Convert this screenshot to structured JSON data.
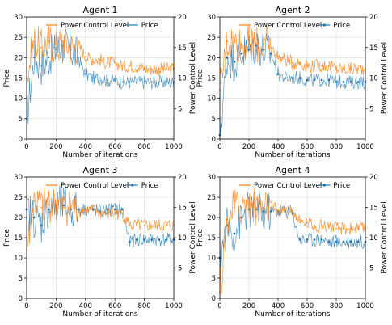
{
  "chart_data": [
    {
      "type": "line",
      "title": "Agent 1",
      "xlabel": "Number of iterations",
      "ylabel": "Price",
      "ylabel_right": "Power Control Level",
      "xlim": [
        0,
        1000
      ],
      "ylim": [
        0,
        30
      ],
      "ylim_right": [
        0,
        20
      ],
      "xticks": [
        0,
        200,
        400,
        600,
        800,
        1000
      ],
      "yticks": [
        0,
        5,
        10,
        15,
        20,
        25,
        30
      ],
      "yticks_right": [
        5,
        10,
        15,
        20
      ],
      "grid": true,
      "legend_position": "top",
      "colors": {
        "power": "#ff7f0e",
        "price": "#1f77b4"
      },
      "series": [
        {
          "name": "Power Control Level",
          "axis": "right",
          "marker": false,
          "x": [
            0,
            50,
            100,
            150,
            200,
            250,
            300,
            350,
            400,
            450,
            500,
            550,
            600,
            650,
            700,
            750,
            800,
            850,
            900,
            950,
            1000
          ],
          "values": [
            10,
            16,
            15,
            16,
            15,
            16,
            15,
            15.5,
            13.5,
            13,
            13,
            12.5,
            12.5,
            12,
            12,
            12,
            11.5,
            11.5,
            11.5,
            11.5,
            11.5
          ]
        },
        {
          "name": "Price",
          "axis": "left",
          "marker": false,
          "x": [
            0,
            50,
            100,
            150,
            200,
            250,
            300,
            350,
            400,
            450,
            500,
            550,
            600,
            650,
            700,
            750,
            800,
            850,
            900,
            950,
            1000
          ],
          "values": [
            5,
            20,
            18,
            20,
            22,
            23,
            22,
            20,
            16,
            15,
            15,
            14.5,
            14.5,
            14,
            14,
            14,
            14,
            14,
            14,
            14,
            14
          ]
        }
      ]
    },
    {
      "type": "line",
      "title": "Agent 2",
      "xlabel": "Number of iterations",
      "ylabel": "Price",
      "ylabel_right": "Power Control Level",
      "xlim": [
        0,
        1000
      ],
      "ylim": [
        0,
        30
      ],
      "ylim_right": [
        0,
        20
      ],
      "xticks": [
        0,
        200,
        400,
        600,
        800,
        1000
      ],
      "yticks": [
        0,
        5,
        10,
        15,
        20,
        25,
        30
      ],
      "yticks_right": [
        5,
        10,
        15,
        20
      ],
      "grid": true,
      "legend_position": "top",
      "colors": {
        "power": "#ff7f0e",
        "price": "#1f77b4"
      },
      "series": [
        {
          "name": "Power Control Level",
          "axis": "right",
          "marker": false,
          "x": [
            0,
            50,
            100,
            150,
            200,
            250,
            300,
            350,
            400,
            450,
            500,
            550,
            600,
            650,
            700,
            750,
            800,
            850,
            900,
            950,
            1000
          ],
          "values": [
            8,
            16,
            16,
            15.5,
            15.5,
            15.5,
            15.5,
            15,
            13.5,
            13,
            12.5,
            12.5,
            12,
            12,
            12,
            12,
            11.5,
            11.5,
            11.5,
            11.5,
            11.5
          ]
        },
        {
          "name": "Price",
          "axis": "left",
          "marker": true,
          "x": [
            0,
            50,
            100,
            150,
            200,
            250,
            300,
            350,
            400,
            450,
            500,
            550,
            600,
            650,
            700,
            750,
            800,
            850,
            900,
            950,
            1000
          ],
          "values": [
            1,
            20,
            19,
            21,
            22,
            23,
            22,
            21,
            16,
            15,
            15,
            15,
            14.5,
            14.5,
            14.5,
            14.5,
            14,
            14,
            14,
            14,
            14
          ]
        }
      ]
    },
    {
      "type": "line",
      "title": "Agent 3",
      "xlabel": "Number of iterations",
      "ylabel": "Price",
      "ylabel_right": "Power Control Level",
      "xlim": [
        0,
        1000
      ],
      "ylim": [
        0,
        30
      ],
      "ylim_right": [
        0,
        20
      ],
      "xticks": [
        0,
        200,
        400,
        600,
        800,
        1000
      ],
      "yticks": [
        0,
        5,
        10,
        15,
        20,
        25,
        30
      ],
      "yticks_right": [
        5,
        10,
        15,
        20
      ],
      "grid": true,
      "legend_position": "top",
      "colors": {
        "power": "#ff7f0e",
        "price": "#1f77b4"
      },
      "series": [
        {
          "name": "Power Control Level",
          "axis": "right",
          "marker": false,
          "x": [
            0,
            50,
            100,
            150,
            200,
            250,
            300,
            350,
            400,
            450,
            500,
            550,
            600,
            650,
            700,
            750,
            800,
            850,
            900,
            950,
            1000
          ],
          "values": [
            8,
            16,
            15,
            15.5,
            15.5,
            15,
            15,
            14.5,
            14.5,
            14.5,
            14,
            14,
            14,
            14,
            12,
            12,
            12,
            12,
            12,
            12,
            12
          ]
        },
        {
          "name": "Price",
          "axis": "left",
          "marker": true,
          "x": [
            0,
            50,
            100,
            150,
            200,
            250,
            300,
            350,
            400,
            450,
            500,
            550,
            600,
            650,
            700,
            750,
            800,
            850,
            900,
            950,
            1000
          ],
          "values": [
            22,
            20,
            18,
            22,
            23,
            23,
            22,
            22,
            22,
            22,
            21.5,
            22,
            22,
            22,
            14,
            14.5,
            14.5,
            14.5,
            14.5,
            14.5,
            14.5
          ]
        }
      ]
    },
    {
      "type": "line",
      "title": "Agent 4",
      "xlabel": "Number of iterations",
      "ylabel": "Price",
      "ylabel_right": "Power Control Level",
      "xlim": [
        0,
        1000
      ],
      "ylim": [
        0,
        30
      ],
      "ylim_right": [
        0,
        20
      ],
      "xticks": [
        0,
        200,
        400,
        600,
        800,
        1000
      ],
      "yticks": [
        0,
        5,
        10,
        15,
        20,
        25,
        30
      ],
      "yticks_right": [
        5,
        10,
        15,
        20
      ],
      "grid": true,
      "legend_position": "top",
      "colors": {
        "power": "#ff7f0e",
        "price": "#1f77b4"
      },
      "series": [
        {
          "name": "Power Control Level",
          "axis": "right",
          "marker": false,
          "x": [
            0,
            50,
            100,
            150,
            200,
            250,
            300,
            350,
            400,
            450,
            500,
            550,
            600,
            650,
            700,
            750,
            800,
            850,
            900,
            950,
            1000
          ],
          "values": [
            1,
            13,
            15,
            15,
            15.5,
            15,
            15,
            15,
            14.5,
            14.5,
            14.5,
            12.5,
            12.5,
            12,
            12,
            12,
            11.5,
            11.5,
            11.5,
            11.5,
            11.5
          ]
        },
        {
          "name": "Price",
          "axis": "left",
          "marker": true,
          "x": [
            0,
            50,
            100,
            150,
            200,
            250,
            300,
            350,
            400,
            450,
            500,
            550,
            600,
            650,
            700,
            750,
            800,
            850,
            900,
            950,
            1000
          ],
          "values": [
            10,
            18,
            16,
            20,
            22,
            22,
            21.5,
            21.5,
            21.5,
            21.5,
            21,
            14.5,
            14.5,
            14.5,
            14.5,
            14,
            14,
            14,
            14,
            14,
            14
          ]
        }
      ]
    }
  ]
}
